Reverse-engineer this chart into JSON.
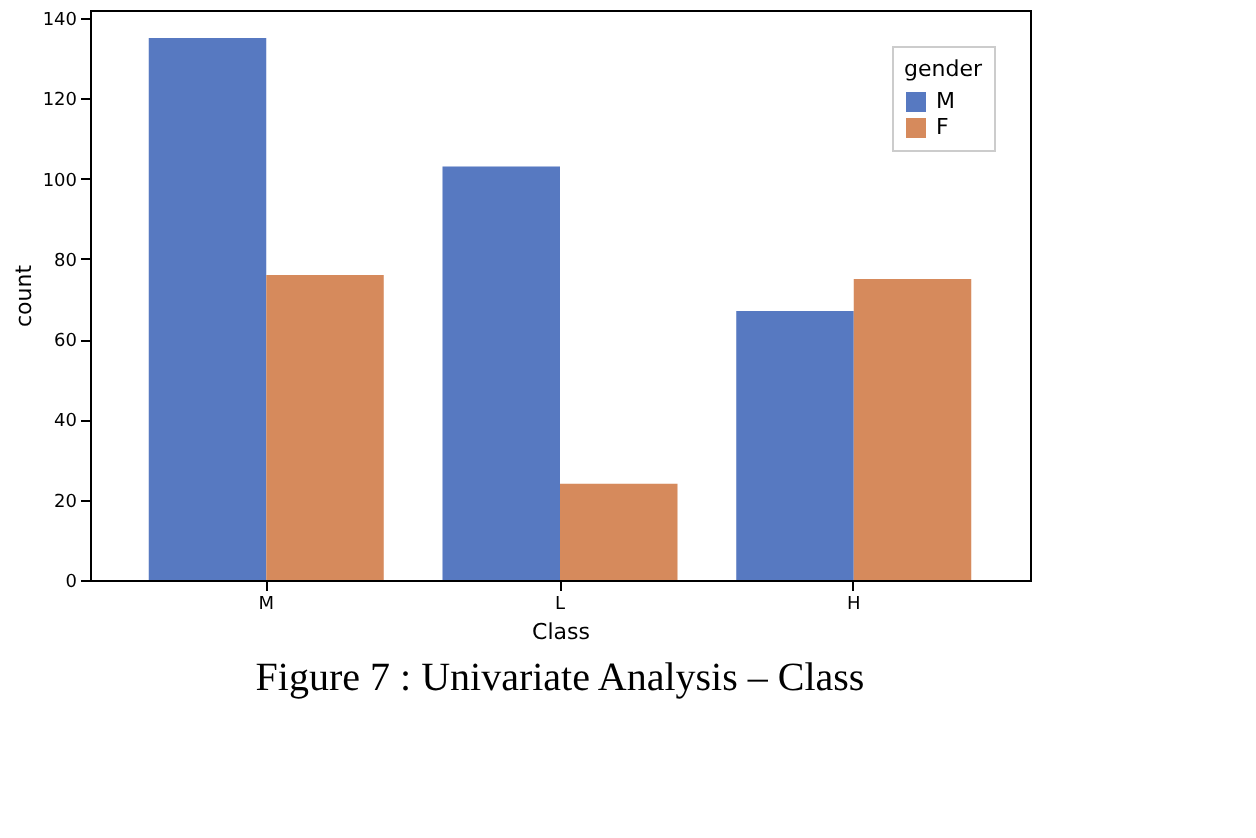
{
  "chart_data": {
    "type": "bar",
    "xlabel": "Class",
    "ylabel": "count",
    "legend_title": "gender",
    "categories": [
      "M",
      "L",
      "H"
    ],
    "series": [
      {
        "name": "M",
        "color": "#5779c1",
        "values": [
          135,
          103,
          67
        ]
      },
      {
        "name": "F",
        "color": "#d68a5c",
        "values": [
          76,
          24,
          75
        ]
      }
    ],
    "ylim": [
      0,
      142
    ],
    "yticks": [
      0,
      20,
      40,
      60,
      80,
      100,
      120,
      140
    ],
    "grid": false,
    "legend": "top right",
    "annotations": [
      "Figure 7 : Univariate Analysis – Class"
    ]
  }
}
